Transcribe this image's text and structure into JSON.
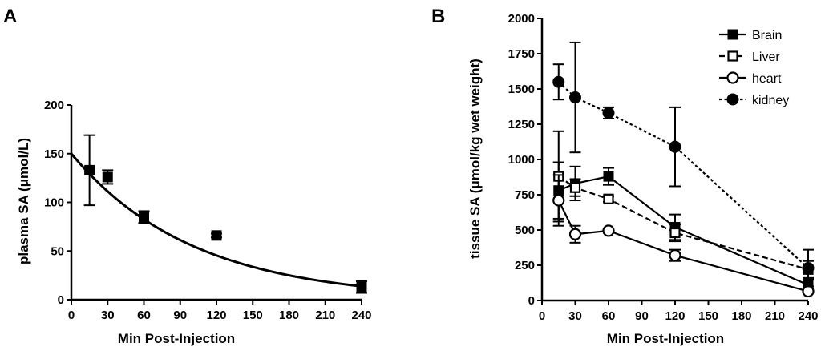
{
  "chart_data": [
    {
      "panel": "A",
      "type": "scatter",
      "title": "",
      "xlabel": "Min Post-Injection",
      "ylabel": "plasma SA (μmol/L)",
      "xlim": [
        0,
        240
      ],
      "ylim": [
        0,
        200
      ],
      "xticks": [
        0,
        30,
        60,
        90,
        120,
        150,
        180,
        210,
        240
      ],
      "yticks": [
        0,
        50,
        100,
        150,
        200
      ],
      "series": [
        {
          "name": "plasma SA",
          "marker": "square-filled",
          "x": [
            15,
            30,
            60,
            120,
            240
          ],
          "y": [
            133,
            126,
            85,
            66,
            13
          ],
          "err": [
            36,
            7,
            6,
            2,
            6
          ]
        }
      ],
      "fit": {
        "type": "exponential-decay",
        "y0": 150,
        "k": 0.00995,
        "x_range": [
          0,
          240
        ]
      }
    },
    {
      "panel": "B",
      "type": "line",
      "title": "",
      "xlabel": "Min Post-Injection",
      "ylabel": "tissue SA (μmol/kg wet weight)",
      "xlim": [
        0,
        240
      ],
      "ylim": [
        0,
        2000
      ],
      "xticks": [
        0,
        30,
        60,
        90,
        120,
        150,
        180,
        210,
        240
      ],
      "yticks": [
        0,
        250,
        500,
        750,
        1000,
        1250,
        1500,
        1750,
        2000
      ],
      "legend_position": "top-right",
      "series": [
        {
          "name": "Brain",
          "marker": "square-filled",
          "line": "solid",
          "x": [
            15,
            30,
            60,
            120,
            240
          ],
          "y": [
            780,
            830,
            880,
            520,
            110
          ],
          "err": [
            200,
            120,
            60,
            90,
            40
          ]
        },
        {
          "name": "Liver",
          "marker": "square-open",
          "line": "dashed",
          "x": [
            15,
            30,
            60,
            120,
            240
          ],
          "y": [
            880,
            800,
            720,
            480,
            220
          ],
          "err": [
            320,
            60,
            20,
            60,
            60
          ]
        },
        {
          "name": "heart",
          "marker": "circle-open",
          "line": "solid",
          "x": [
            15,
            30,
            60,
            120,
            240
          ],
          "y": [
            710,
            470,
            495,
            320,
            65
          ],
          "err": [
            180,
            60,
            15,
            40,
            15
          ]
        },
        {
          "name": "kidney",
          "marker": "circle-filled",
          "line": "dotted",
          "x": [
            15,
            30,
            60,
            120,
            240
          ],
          "y": [
            1550,
            1440,
            1330,
            1090,
            230
          ],
          "err": [
            125,
            390,
            40,
            280,
            130
          ]
        }
      ]
    }
  ]
}
